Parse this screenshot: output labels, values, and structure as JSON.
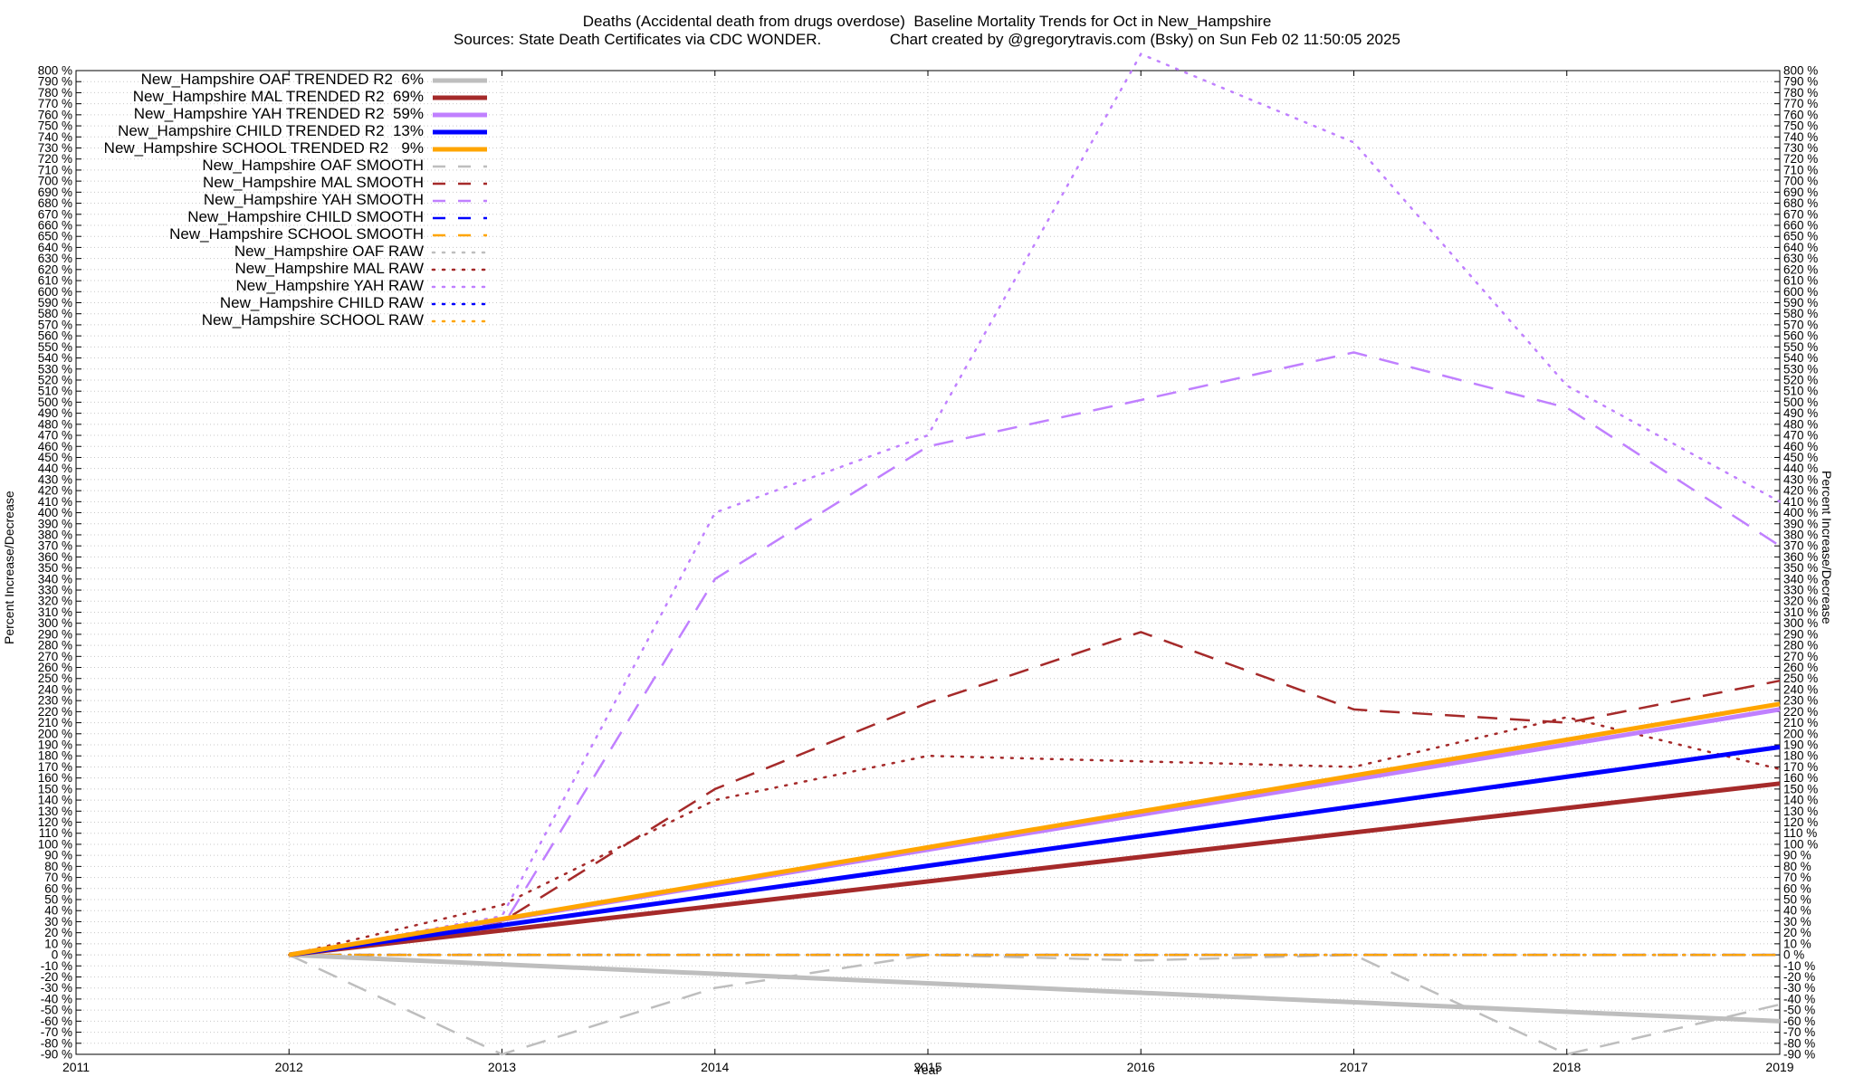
{
  "title": {
    "line1": "Deaths (Accidental death from drugs overdose)  Baseline Mortality Trends for Oct in New_Hampshire",
    "line2a": "Sources: State Death Certificates via CDC WONDER.",
    "line2b": "Chart created by @gregorytravis.com (Bsky) on Sun Feb 02 11:50:05 2025"
  },
  "chart_data": {
    "type": "line",
    "xlabel": "Year",
    "ylabel": "Percent Increase/Decrease",
    "xlim": [
      2011,
      2019
    ],
    "ylim": [
      -90,
      800
    ],
    "xticks": [
      2011,
      2012,
      2013,
      2014,
      2015,
      2016,
      2017,
      2018,
      2019
    ],
    "ytick_step": 10,
    "ytick_suffix": " %",
    "grid": true,
    "legend_position": "top-left",
    "series": [
      {
        "name": "New_Hampshire OAF TRENDED R2  6%",
        "style": "trend",
        "color": "#bebebe",
        "x": [
          2012,
          2019
        ],
        "y": [
          0,
          -60
        ]
      },
      {
        "name": "New_Hampshire MAL TRENDED R2  69%",
        "style": "trend",
        "color": "#a52a2a",
        "x": [
          2012,
          2019
        ],
        "y": [
          0,
          155
        ]
      },
      {
        "name": "New_Hampshire YAH TRENDED R2  59%",
        "style": "trend",
        "color": "#c080ff",
        "x": [
          2012,
          2019
        ],
        "y": [
          0,
          222
        ]
      },
      {
        "name": "New_Hampshire CHILD TRENDED R2  13%",
        "style": "trend",
        "color": "#0000ff",
        "x": [
          2012,
          2019
        ],
        "y": [
          0,
          188
        ]
      },
      {
        "name": "New_Hampshire SCHOOL TRENDED R2   9%",
        "style": "trend",
        "color": "#ffa500",
        "x": [
          2012,
          2019
        ],
        "y": [
          0,
          227
        ]
      },
      {
        "name": "New_Hampshire OAF SMOOTH",
        "style": "smooth",
        "color": "#bebebe",
        "x": [
          2012,
          2013,
          2014,
          2015,
          2016,
          2017,
          2018,
          2019
        ],
        "y": [
          0,
          -90,
          -30,
          0,
          -5,
          0,
          -90,
          -45
        ]
      },
      {
        "name": "New_Hampshire MAL SMOOTH",
        "style": "smooth",
        "color": "#a52a2a",
        "x": [
          2012,
          2013,
          2014,
          2015,
          2016,
          2017,
          2018,
          2019
        ],
        "y": [
          0,
          30,
          150,
          228,
          292,
          222,
          210,
          248
        ]
      },
      {
        "name": "New_Hampshire YAH SMOOTH",
        "style": "smooth",
        "color": "#c080ff",
        "x": [
          2012,
          2013,
          2014,
          2015,
          2016,
          2017,
          2018,
          2019
        ],
        "y": [
          0,
          25,
          340,
          460,
          502,
          545,
          495,
          370
        ]
      },
      {
        "name": "New_Hampshire CHILD SMOOTH",
        "style": "smooth",
        "color": "#0000ff",
        "x": [
          2012,
          2019
        ],
        "y": [
          0,
          0
        ]
      },
      {
        "name": "New_Hampshire SCHOOL SMOOTH",
        "style": "smooth",
        "color": "#ffa500",
        "x": [
          2012,
          2019
        ],
        "y": [
          0,
          0
        ]
      },
      {
        "name": "New_Hampshire OAF RAW",
        "style": "raw",
        "color": "#bebebe",
        "x": [
          2012,
          2013,
          2014,
          2015,
          2016,
          2017,
          2018,
          2019
        ],
        "y": [
          0,
          0,
          0,
          0,
          0,
          0,
          0,
          0
        ]
      },
      {
        "name": "New_Hampshire MAL RAW",
        "style": "raw",
        "color": "#a52a2a",
        "x": [
          2012,
          2013,
          2014,
          2015,
          2016,
          2017,
          2018,
          2019
        ],
        "y": [
          0,
          45,
          140,
          180,
          175,
          170,
          215,
          168
        ]
      },
      {
        "name": "New_Hampshire YAH RAW",
        "style": "raw",
        "color": "#c080ff",
        "x": [
          2012,
          2013,
          2014,
          2015,
          2016,
          2017,
          2018,
          2019
        ],
        "y": [
          0,
          35,
          400,
          470,
          815,
          735,
          515,
          410
        ]
      },
      {
        "name": "New_Hampshire CHILD RAW",
        "style": "raw",
        "color": "#0000ff",
        "x": [
          2012,
          2019
        ],
        "y": [
          0,
          0
        ]
      },
      {
        "name": "New_Hampshire SCHOOL RAW",
        "style": "raw",
        "color": "#ffa500",
        "x": [
          2012,
          2019
        ],
        "y": [
          0,
          0
        ]
      }
    ]
  }
}
